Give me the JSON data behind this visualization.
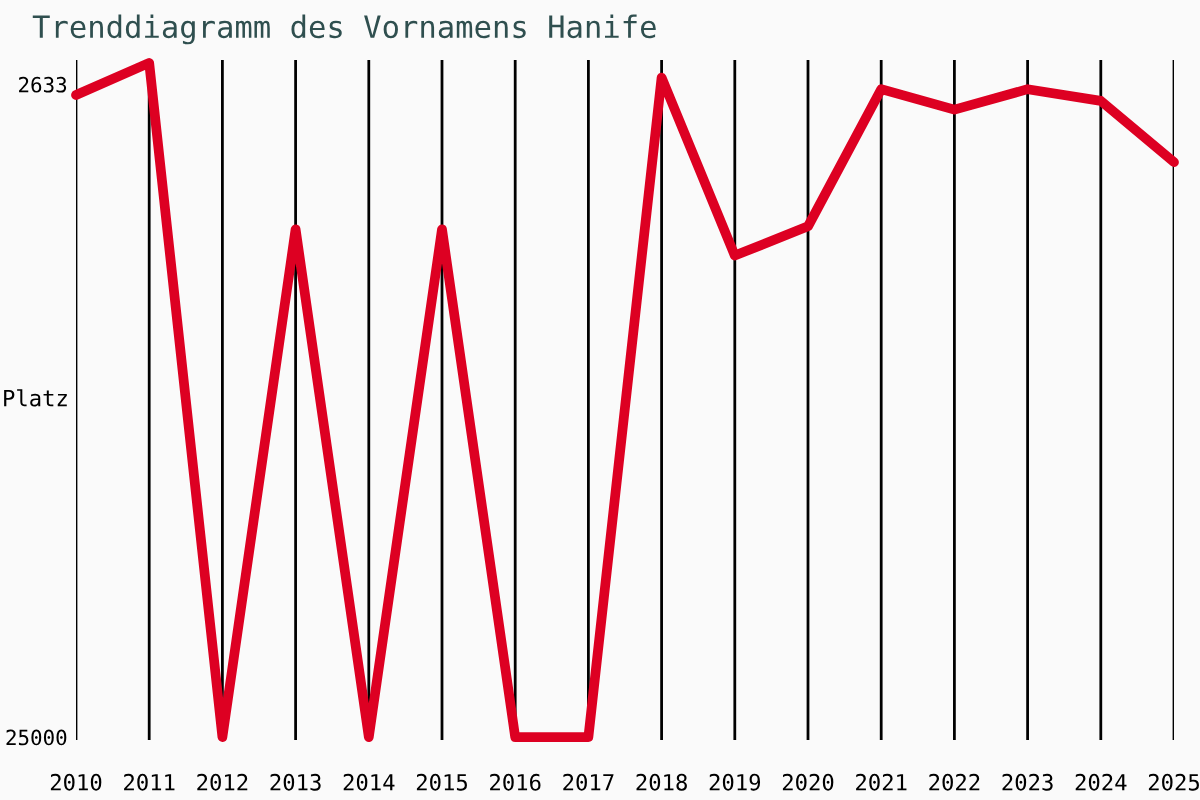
{
  "chart_data": {
    "type": "line",
    "title": "Trenddiagramm des Vornamens Hanife",
    "ylabel": "Platz",
    "x": [
      2010,
      2011,
      2012,
      2013,
      2014,
      2015,
      2016,
      2017,
      2018,
      2019,
      2020,
      2021,
      2022,
      2023,
      2024,
      2025
    ],
    "series": [
      {
        "color": "#dd0022",
        "values": [
          3000,
          1900,
          25000,
          7600,
          25000,
          7600,
          25000,
          25000,
          2400,
          8500,
          7500,
          2800,
          3500,
          2800,
          3200,
          5300
        ]
      }
    ],
    "xlim": [
      2010,
      2025
    ],
    "ylim": [
      25100,
      1800
    ],
    "xticks": [
      2010,
      2011,
      2012,
      2013,
      2014,
      2015,
      2016,
      2017,
      2018,
      2019,
      2020,
      2021,
      2022,
      2023,
      2024,
      2025
    ],
    "yticks": [
      2633,
      25000
    ],
    "grid": "x",
    "marker": "none",
    "line_style": "solid"
  }
}
